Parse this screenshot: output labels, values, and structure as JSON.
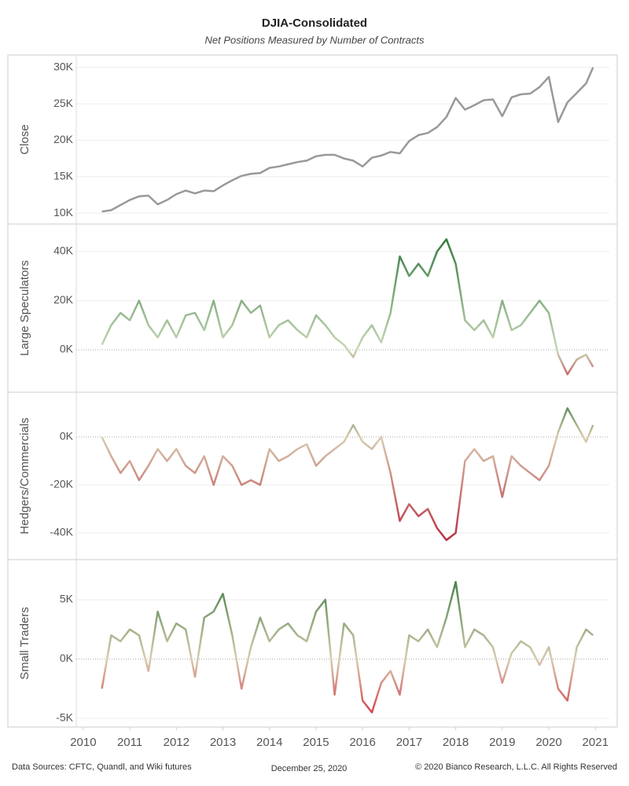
{
  "title": "DJIA-Consolidated",
  "subtitle": "Net Positions Measured by Number of Contracts",
  "footer": {
    "sources": "Data Sources: CFTC, Quandl, and Wiki futures",
    "date": "December 25, 2020",
    "copyright": "© 2020 Bianco Research, L.L.C. All Rights Reserved"
  },
  "chart_data": [
    {
      "type": "line",
      "ylabel": "Close",
      "color": "#999999",
      "grid": true,
      "zero_line": false,
      "xlim": [
        2009.85,
        2021.3
      ],
      "x": [
        2010.4,
        2010.6,
        2010.8,
        2011.0,
        2011.2,
        2011.4,
        2011.6,
        2011.8,
        2012.0,
        2012.2,
        2012.4,
        2012.6,
        2012.8,
        2013.0,
        2013.2,
        2013.4,
        2013.6,
        2013.8,
        2014.0,
        2014.2,
        2014.4,
        2014.6,
        2014.8,
        2015.0,
        2015.2,
        2015.4,
        2015.6,
        2015.8,
        2016.0,
        2016.2,
        2016.4,
        2016.6,
        2016.8,
        2017.0,
        2017.2,
        2017.4,
        2017.6,
        2017.8,
        2018.0,
        2018.2,
        2018.4,
        2018.6,
        2018.8,
        2019.0,
        2019.2,
        2019.4,
        2019.6,
        2019.8,
        2020.0,
        2020.2,
        2020.4,
        2020.6,
        2020.8,
        2020.95
      ],
      "values": [
        10200,
        10400,
        11100,
        11800,
        12300,
        12400,
        11200,
        11800,
        12600,
        13100,
        12700,
        13100,
        13000,
        13800,
        14500,
        15100,
        15400,
        15500,
        16200,
        16400,
        16700,
        17000,
        17200,
        17800,
        18000,
        18000,
        17500,
        17200,
        16400,
        17600,
        17900,
        18400,
        18200,
        19900,
        20700,
        21000,
        21800,
        23200,
        25800,
        24200,
        24800,
        25500,
        25600,
        23300,
        25900,
        26300,
        26400,
        27300,
        28700,
        22500,
        25200,
        26500,
        27800,
        30000
      ],
      "ylim": [
        8500,
        31700
      ],
      "yticks": [
        {
          "value": 10000,
          "label": "10K"
        },
        {
          "value": 15000,
          "label": "15K"
        },
        {
          "value": 20000,
          "label": "20K"
        },
        {
          "value": 25000,
          "label": "25K"
        },
        {
          "value": 30000,
          "label": "30K"
        }
      ]
    },
    {
      "type": "line",
      "ylabel": "Large Speculators",
      "colors": {
        "positive": "#1f6e2e",
        "zero": "#c8d9b8",
        "negative": "#c81e36"
      },
      "grid": true,
      "zero_line": true,
      "xlim": [
        2009.85,
        2021.3
      ],
      "x": [
        2010.4,
        2010.6,
        2010.8,
        2011.0,
        2011.2,
        2011.4,
        2011.6,
        2011.8,
        2012.0,
        2012.2,
        2012.4,
        2012.6,
        2012.8,
        2013.0,
        2013.2,
        2013.4,
        2013.6,
        2013.8,
        2014.0,
        2014.2,
        2014.4,
        2014.6,
        2014.8,
        2015.0,
        2015.2,
        2015.4,
        2015.6,
        2015.8,
        2016.0,
        2016.2,
        2016.4,
        2016.6,
        2016.8,
        2017.0,
        2017.2,
        2017.4,
        2017.6,
        2017.8,
        2018.0,
        2018.2,
        2018.4,
        2018.6,
        2018.8,
        2019.0,
        2019.2,
        2019.4,
        2019.6,
        2019.8,
        2020.0,
        2020.2,
        2020.4,
        2020.6,
        2020.8,
        2020.95
      ],
      "values": [
        2000,
        10000,
        15000,
        12000,
        20000,
        10000,
        5000,
        12000,
        5000,
        14000,
        15000,
        8000,
        20000,
        5000,
        10000,
        20000,
        15000,
        18000,
        5000,
        10000,
        12000,
        8000,
        5000,
        14000,
        10000,
        5000,
        2000,
        -3000,
        5000,
        10000,
        3000,
        15000,
        38000,
        30000,
        35000,
        30000,
        40000,
        45000,
        35000,
        12000,
        8000,
        12000,
        5000,
        20000,
        8000,
        10000,
        15000,
        20000,
        15000,
        -2000,
        -10000,
        -4000,
        -2000,
        -7000
      ],
      "ylim": [
        -17300,
        51200
      ],
      "yticks": [
        {
          "value": 0,
          "label": "0K"
        },
        {
          "value": 20000,
          "label": "20K"
        },
        {
          "value": 40000,
          "label": "40K"
        }
      ]
    },
    {
      "type": "line",
      "ylabel": "Hedgers/Commercials",
      "colors": {
        "positive": "#1f6e2e",
        "zero": "#d8ccb0",
        "negative": "#b5102c"
      },
      "grid": true,
      "zero_line": true,
      "xlim": [
        2009.85,
        2021.3
      ],
      "x": [
        2010.4,
        2010.6,
        2010.8,
        2011.0,
        2011.2,
        2011.4,
        2011.6,
        2011.8,
        2012.0,
        2012.2,
        2012.4,
        2012.6,
        2012.8,
        2013.0,
        2013.2,
        2013.4,
        2013.6,
        2013.8,
        2014.0,
        2014.2,
        2014.4,
        2014.6,
        2014.8,
        2015.0,
        2015.2,
        2015.4,
        2015.6,
        2015.8,
        2016.0,
        2016.2,
        2016.4,
        2016.6,
        2016.8,
        2017.0,
        2017.2,
        2017.4,
        2017.6,
        2017.8,
        2018.0,
        2018.2,
        2018.4,
        2018.6,
        2018.8,
        2019.0,
        2019.2,
        2019.4,
        2019.6,
        2019.8,
        2020.0,
        2020.2,
        2020.4,
        2020.6,
        2020.8,
        2020.95
      ],
      "values": [
        0,
        -8000,
        -15000,
        -10000,
        -18000,
        -12000,
        -5000,
        -10000,
        -5000,
        -12000,
        -15000,
        -8000,
        -20000,
        -8000,
        -12000,
        -20000,
        -18000,
        -20000,
        -5000,
        -10000,
        -8000,
        -5000,
        -3000,
        -12000,
        -8000,
        -5000,
        -2000,
        5000,
        -2000,
        -5000,
        0,
        -15000,
        -35000,
        -28000,
        -33000,
        -30000,
        -38000,
        -43000,
        -40000,
        -10000,
        -5000,
        -10000,
        -8000,
        -25000,
        -8000,
        -12000,
        -15000,
        -18000,
        -12000,
        2000,
        12000,
        5000,
        -2000,
        5000
      ],
      "ylim": [
        -51150,
        18700
      ],
      "yticks": [
        {
          "value": -40000,
          "label": "-40K"
        },
        {
          "value": -20000,
          "label": "-20K"
        },
        {
          "value": 0,
          "label": "0K"
        }
      ]
    },
    {
      "type": "line",
      "ylabel": "Small Traders",
      "colors": {
        "positive": "#1f6e2e",
        "zero": "#d8ccb0",
        "negative": "#d0243a"
      },
      "grid": true,
      "zero_line": true,
      "xlim": [
        2009.85,
        2021.3
      ],
      "x": [
        2010.4,
        2010.6,
        2010.8,
        2011.0,
        2011.2,
        2011.4,
        2011.6,
        2011.8,
        2012.0,
        2012.2,
        2012.4,
        2012.6,
        2012.8,
        2013.0,
        2013.2,
        2013.4,
        2013.6,
        2013.8,
        2014.0,
        2014.2,
        2014.4,
        2014.6,
        2014.8,
        2015.0,
        2015.2,
        2015.4,
        2015.6,
        2015.8,
        2016.0,
        2016.2,
        2016.4,
        2016.6,
        2016.8,
        2017.0,
        2017.2,
        2017.4,
        2017.6,
        2017.8,
        2018.0,
        2018.2,
        2018.4,
        2018.6,
        2018.8,
        2019.0,
        2019.2,
        2019.4,
        2019.6,
        2019.8,
        2020.0,
        2020.2,
        2020.4,
        2020.6,
        2020.8,
        2020.95
      ],
      "values": [
        -2500,
        2000,
        1500,
        2500,
        2000,
        -1000,
        4000,
        1500,
        3000,
        2500,
        -1500,
        3500,
        4000,
        5500,
        2000,
        -2500,
        1000,
        3500,
        1500,
        2500,
        3000,
        2000,
        1500,
        4000,
        5000,
        -3000,
        3000,
        2000,
        -3500,
        -4500,
        -2000,
        -1000,
        -3000,
        2000,
        1500,
        2500,
        1000,
        3500,
        6500,
        1000,
        2500,
        2000,
        1000,
        -2000,
        500,
        1500,
        1000,
        -500,
        1000,
        -2500,
        -3500,
        1000,
        2500,
        2000
      ],
      "ylim": [
        -5730,
        8380
      ],
      "yticks": [
        {
          "value": -5000,
          "label": "-5K"
        },
        {
          "value": 0,
          "label": "0K"
        },
        {
          "value": 5000,
          "label": "5K"
        }
      ],
      "xticks": [
        2010,
        2011,
        2012,
        2013,
        2014,
        2015,
        2016,
        2017,
        2018,
        2019,
        2020,
        2021
      ]
    }
  ]
}
